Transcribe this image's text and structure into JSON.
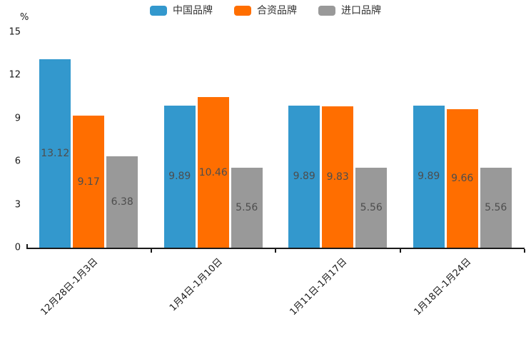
{
  "chart_data": {
    "type": "bar",
    "title": "",
    "unit": "%",
    "categories": [
      "12月28日-1月3日",
      "1月4日-1月10日",
      "1月11日-1月17日",
      "1月18日-1月24日"
    ],
    "series": [
      {
        "name": "中国品牌",
        "color": "#3398CD",
        "values": [
          13.12,
          9.89,
          9.89,
          9.89
        ]
      },
      {
        "name": "合资品牌",
        "color": "#FF6E00",
        "values": [
          9.17,
          10.46,
          9.83,
          9.66
        ]
      },
      {
        "name": "进口品牌",
        "color": "#999999",
        "values": [
          6.38,
          5.56,
          5.56,
          5.56
        ]
      }
    ],
    "ylim": [
      0,
      15
    ],
    "yticks": [
      0,
      3,
      6,
      9,
      12,
      15
    ],
    "legend_position": "top",
    "grid": false,
    "value_label_color": "#4d4d4d",
    "axis_color": "#1a1a1a"
  }
}
